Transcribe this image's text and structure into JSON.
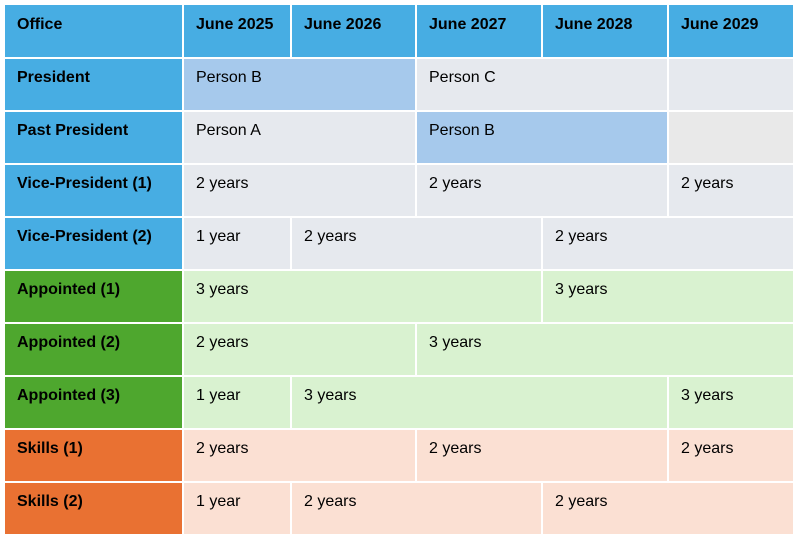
{
  "colors": {
    "header_blue": "#47ade3",
    "row_blue": "#47ade3",
    "row_green": "#4ea72e",
    "row_orange": "#e97132",
    "cell_gray": "#e6e9ee",
    "cell_highlight_blue": "#a6c9ec",
    "cell_empty_gray": "#e9e9e9",
    "cell_green": "#d9f2d0",
    "cell_orange": "#fbe0d3"
  },
  "header": {
    "office": "Office",
    "years": [
      "June 2025",
      "June 2026",
      "June 2027",
      "June 2028",
      "June 2029"
    ]
  },
  "rows": [
    {
      "office": "President",
      "group": "blue",
      "cells": [
        {
          "text": "Person B",
          "span": 2,
          "fill": "highlight"
        },
        {
          "text": "Person C",
          "span": 2,
          "fill": "gray"
        },
        {
          "text": "",
          "span": 1,
          "fill": "gray"
        }
      ]
    },
    {
      "office": "Past President",
      "group": "blue",
      "cells": [
        {
          "text": "Person A",
          "span": 2,
          "fill": "gray"
        },
        {
          "text": "Person B",
          "span": 2,
          "fill": "highlight"
        },
        {
          "text": "",
          "span": 1,
          "fill": "empty"
        }
      ]
    },
    {
      "office": "Vice-President (1)",
      "group": "blue",
      "cells": [
        {
          "text": "2 years",
          "span": 2,
          "fill": "gray"
        },
        {
          "text": "2 years",
          "span": 2,
          "fill": "gray"
        },
        {
          "text": "2 years",
          "span": 1,
          "fill": "gray"
        }
      ]
    },
    {
      "office": "Vice-President (2)",
      "group": "blue",
      "cells": [
        {
          "text": "1 year",
          "span": 1,
          "fill": "gray"
        },
        {
          "text": "2 years",
          "span": 2,
          "fill": "gray"
        },
        {
          "text": "2 years",
          "span": 2,
          "fill": "gray"
        }
      ]
    },
    {
      "office": "Appointed (1)",
      "group": "green",
      "cells": [
        {
          "text": "3 years",
          "span": 3,
          "fill": "green"
        },
        {
          "text": "3 years",
          "span": 2,
          "fill": "green"
        }
      ]
    },
    {
      "office": "Appointed (2)",
      "group": "green",
      "cells": [
        {
          "text": "2 years",
          "span": 2,
          "fill": "green"
        },
        {
          "text": "3 years",
          "span": 3,
          "fill": "green"
        }
      ]
    },
    {
      "office": "Appointed (3)",
      "group": "green",
      "cells": [
        {
          "text": "1 year",
          "span": 1,
          "fill": "green"
        },
        {
          "text": "3 years",
          "span": 3,
          "fill": "green"
        },
        {
          "text": "3 years",
          "span": 1,
          "fill": "green"
        }
      ]
    },
    {
      "office": "Skills (1)",
      "group": "orange",
      "cells": [
        {
          "text": "2 years",
          "span": 2,
          "fill": "orange"
        },
        {
          "text": "2 years",
          "span": 2,
          "fill": "orange"
        },
        {
          "text": "2 years",
          "span": 1,
          "fill": "orange"
        }
      ]
    },
    {
      "office": "Skills (2)",
      "group": "orange",
      "cells": [
        {
          "text": "1 year",
          "span": 1,
          "fill": "orange"
        },
        {
          "text": "2 years",
          "span": 2,
          "fill": "orange"
        },
        {
          "text": "2 years",
          "span": 2,
          "fill": "orange"
        }
      ]
    }
  ]
}
